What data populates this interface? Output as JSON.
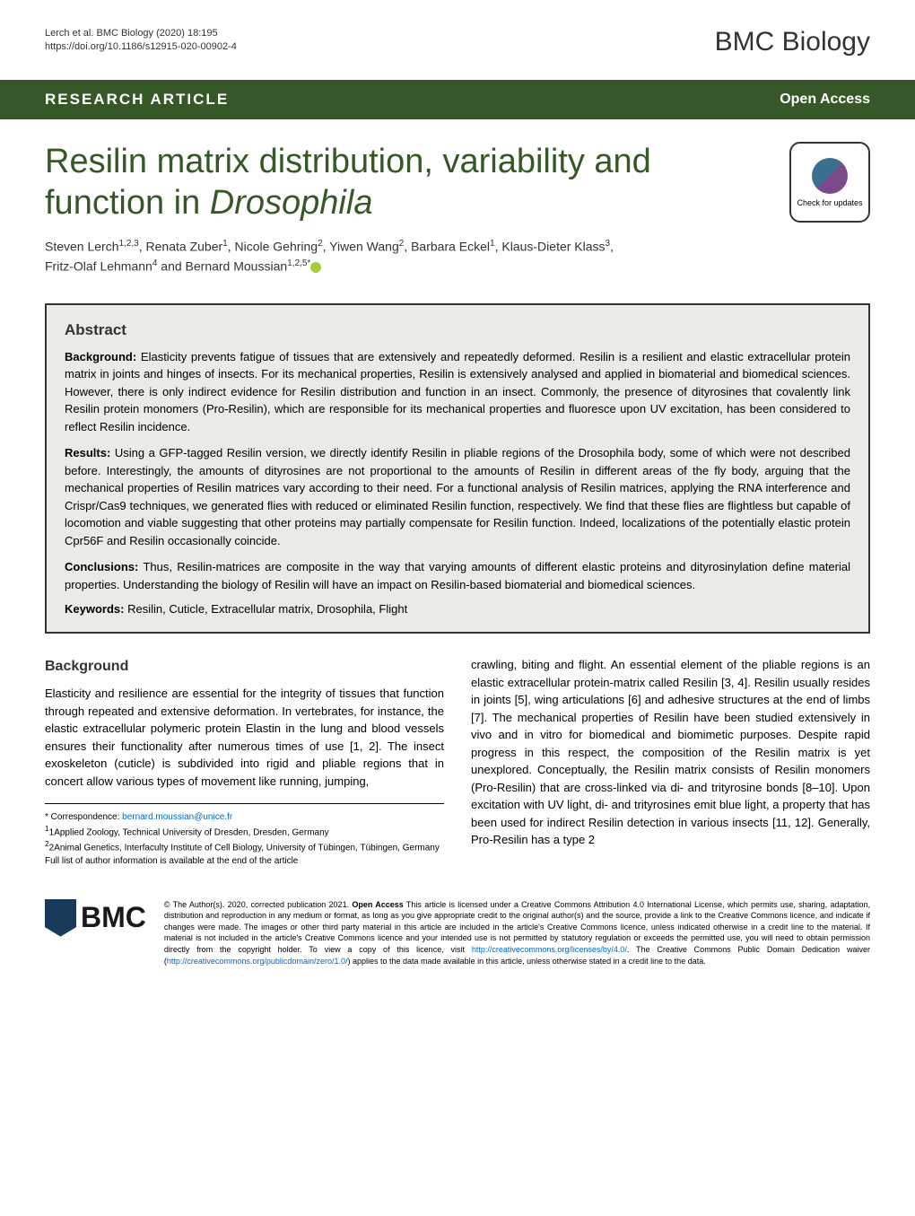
{
  "header": {
    "citation_line1": "Lerch et al. BMC Biology        (2020) 18:195",
    "citation_line2": "https://doi.org/10.1186/s12915-020-00902-4",
    "journal_name": "BMC Biology"
  },
  "article_bar": {
    "type": "RESEARCH ARTICLE",
    "access": "Open Access"
  },
  "title": {
    "main": "Resilin matrix distribution, variability and function in ",
    "italic": "Drosophila"
  },
  "check_updates": "Check for updates",
  "authors": {
    "line1": "Steven Lerch",
    "sup1": "1,2,3",
    "a2": ", Renata Zuber",
    "sup2": "1",
    "a3": ", Nicole Gehring",
    "sup3": "2",
    "a4": ", Yiwen Wang",
    "sup4": "2",
    "a5": ", Barbara Eckel",
    "sup5": "1",
    "a6": ", Klaus-Dieter Klass",
    "sup6": "3",
    "a7": ",",
    "line2": "Fritz-Olaf Lehmann",
    "sup7": "4",
    "a8": " and Bernard Moussian",
    "sup8": "1,2,5*"
  },
  "abstract": {
    "heading": "Abstract",
    "background_label": "Background:",
    "background_text": " Elasticity prevents fatigue of tissues that are extensively and repeatedly deformed. Resilin is a resilient and elastic extracellular protein matrix in joints and hinges of insects. For its mechanical properties, Resilin is extensively analysed and applied in biomaterial and biomedical sciences. However, there is only indirect evidence for Resilin distribution and function in an insect. Commonly, the presence of dityrosines that covalently link Resilin protein monomers (Pro-Resilin), which are responsible for its mechanical properties and fluoresce upon UV excitation, has been considered to reflect Resilin incidence.",
    "results_label": "Results:",
    "results_text": " Using a GFP-tagged Resilin version, we directly identify Resilin in pliable regions of the Drosophila body, some of which were not described before. Interestingly, the amounts of dityrosines are not proportional to the amounts of Resilin in different areas of the fly body, arguing that the mechanical properties of Resilin matrices vary according to their need. For a functional analysis of Resilin matrices, applying the RNA interference and Crispr/Cas9 techniques, we generated flies with reduced or eliminated Resilin function, respectively. We find that these flies are flightless but capable of locomotion and viable suggesting that other proteins may partially compensate for Resilin function. Indeed, localizations of the potentially elastic protein Cpr56F and Resilin occasionally coincide.",
    "conclusions_label": "Conclusions:",
    "conclusions_text": " Thus, Resilin-matrices are composite in the way that varying amounts of different elastic proteins and dityrosinylation define material properties. Understanding the biology of Resilin will have an impact on Resilin-based biomaterial and biomedical sciences.",
    "keywords_label": "Keywords:",
    "keywords_text": " Resilin, Cuticle, Extracellular matrix, Drosophila, Flight"
  },
  "body": {
    "section_heading": "Background",
    "col1_p1": "Elasticity and resilience are essential for the integrity of tissues that function through repeated and extensive deformation. In vertebrates, for instance, the elastic extracellular polymeric protein Elastin in the lung and blood vessels ensures their functionality after numerous times of use [1, 2]. The insect exoskeleton (cuticle) is subdivided into rigid and pliable regions that in concert allow various types of movement like running, jumping,",
    "col2_p1": "crawling, biting and flight. An essential element of the pliable regions is an elastic extracellular protein-matrix called Resilin [3, 4]. Resilin usually resides in joints [5], wing articulations [6] and adhesive structures at the end of limbs [7]. The mechanical properties of Resilin have been studied extensively in vivo and in vitro for biomedical and biomimetic purposes. Despite rapid progress in this respect, the composition of the Resilin matrix is yet unexplored. Conceptually, the Resilin matrix consists of Resilin monomers (Pro-Resilin) that are cross-linked via di- and trityrosine bonds [8–10]. Upon excitation with UV light, di- and trityrosines emit blue light, a property that has been used for indirect Resilin detection in various insects [11, 12]. Generally, Pro-Resilin has a type 2"
  },
  "footer": {
    "correspondence": "* Correspondence: ",
    "email": "bernard.moussian@unice.fr",
    "affil1": "1Applied Zoology, Technical University of Dresden, Dresden, Germany",
    "affil2": "2Animal Genetics, Interfaculty Institute of Cell Biology, University of Tübingen, Tübingen, Germany",
    "affil_note": "Full list of author information is available at the end of the article"
  },
  "license": {
    "text1": "© The Author(s). 2020, corrected publication 2021. ",
    "bold1": "Open Access",
    "text2": " This article is licensed under a Creative Commons Attribution 4.0 International License, which permits use, sharing, adaptation, distribution and reproduction in any medium or format, as long as you give appropriate credit to the original author(s) and the source, provide a link to the Creative Commons licence, and indicate if changes were made. The images or other third party material in this article are included in the article's Creative Commons licence, unless indicated otherwise in a credit line to the material. If material is not included in the article's Creative Commons licence and your intended use is not permitted by statutory regulation or exceeds the permitted use, you will need to obtain permission directly from the copyright holder. To view a copy of this licence, visit ",
    "link1": "http://creativecommons.org/licenses/by/4.0/",
    "text3": ". The Creative Commons Public Domain Dedication waiver (",
    "link2": "http://creativecommons.org/publicdomain/zero/1.0/",
    "text4": ") applies to the data made available in this article, unless otherwise stated in a credit line to the data."
  },
  "bmc_logo": "BMC",
  "colors": {
    "primary_green": "#365828",
    "abstract_bg": "#e8ebe6",
    "link_blue": "#0066cc",
    "text_dark": "#333333",
    "orcid_green": "#a6ce39",
    "bmc_navy": "#1a3a5c"
  }
}
